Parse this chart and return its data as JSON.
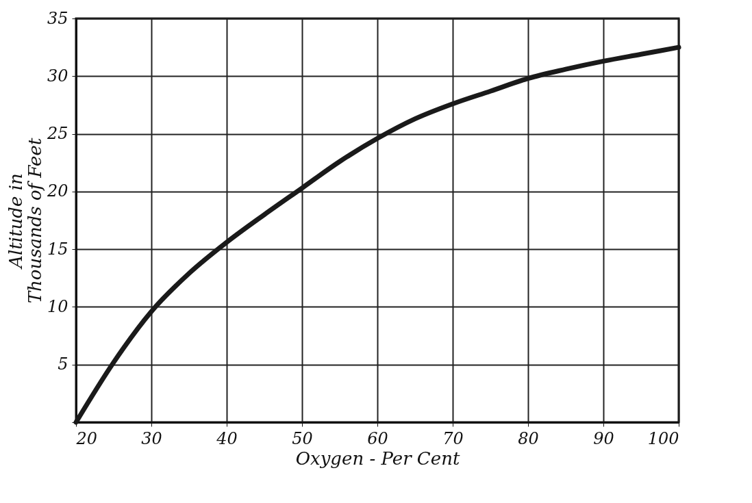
{
  "chart_data": {
    "type": "line",
    "xlabel": "Oxygen - Per Cent",
    "ylabel": "Altitude in\nThousands of Feet",
    "x": [
      20,
      25,
      30,
      35,
      40,
      45,
      50,
      55,
      60,
      65,
      70,
      75,
      80,
      85,
      90,
      95,
      100
    ],
    "series": [
      {
        "color": "#1a1a1a",
        "values": [
          0,
          5.2,
          9.6,
          12.9,
          15.6,
          18,
          20.3,
          22.6,
          24.6,
          26.3,
          27.6,
          28.7,
          29.8,
          30.6,
          31.3,
          31.9,
          32.5
        ]
      }
    ],
    "xlim": [
      20,
      100
    ],
    "xticks": [
      20,
      30,
      40,
      50,
      60,
      70,
      80,
      90,
      100
    ],
    "ylim": [
      0,
      35
    ],
    "yticks": [
      {
        "value": 0,
        "label": null
      },
      5,
      10,
      15,
      20,
      25,
      30,
      35
    ],
    "grid": true,
    "marker": "none",
    "line_style": "solid"
  }
}
